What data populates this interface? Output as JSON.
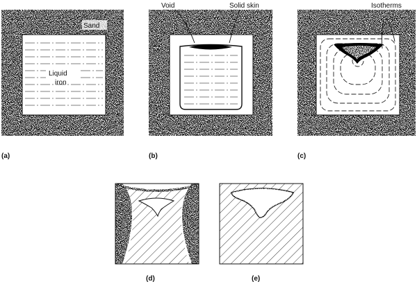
{
  "panels": [
    {
      "id": "a",
      "label": "(a)"
    },
    {
      "id": "b",
      "label": "(b)"
    },
    {
      "id": "c",
      "label": "(c)"
    },
    {
      "id": "d",
      "label": "(d)"
    },
    {
      "id": "e",
      "label": "(e)"
    }
  ],
  "annotations": {
    "sand": "Sand",
    "liquid_line1": "Liquid",
    "liquid_line2": "iron",
    "void": "Void",
    "solid_skin": "Solid skin",
    "isotherms": "Isotherms"
  }
}
